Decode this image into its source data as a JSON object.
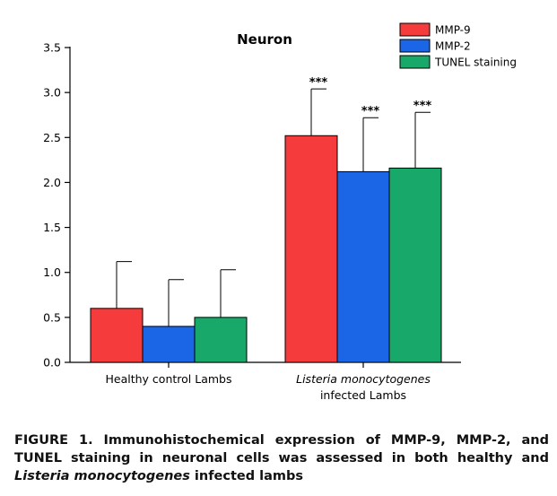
{
  "chart_data": {
    "type": "bar",
    "title": "Neuron",
    "categories": [
      "Healthy control Lambs",
      "Listeria monocytogenes infected Lambs"
    ],
    "category_labels": [
      {
        "line1_italic": "",
        "line1": "Healthy control Lambs",
        "line2": ""
      },
      {
        "line1_italic": "Listeria monocytogenes",
        "line1": "",
        "line2": "infected Lambs"
      }
    ],
    "series": [
      {
        "name": "MMP-9",
        "color": "#f53b3b",
        "values": [
          0.6,
          2.52
        ],
        "error": [
          0.52,
          0.52
        ],
        "annotations": [
          "",
          "***"
        ]
      },
      {
        "name": "MMP-2",
        "color": "#1a66e6",
        "values": [
          0.4,
          2.12
        ],
        "error": [
          0.52,
          0.6
        ],
        "annotations": [
          "",
          "***"
        ]
      },
      {
        "name": "TUNEL staining",
        "color": "#17a86a",
        "values": [
          0.5,
          2.16
        ],
        "error": [
          0.53,
          0.62
        ],
        "annotations": [
          "",
          "***"
        ]
      }
    ],
    "ylim": [
      0,
      3.5
    ],
    "yticks": [
      "0.0",
      "0.5",
      "1.0",
      "1.5",
      "2.0",
      "2.5",
      "3.0",
      "3.5"
    ],
    "xlabel": "",
    "ylabel": "",
    "legend_position": "top-right",
    "grid": false
  },
  "caption": {
    "prefix": "FIGURE 1. Immunohistochemical expression of MMP-9, MMP-2, and TUNEL staining in neuronal cells was assessed in both healthy and ",
    "italic": "Listeria monocytogenes",
    "suffix": " infected lambs"
  }
}
